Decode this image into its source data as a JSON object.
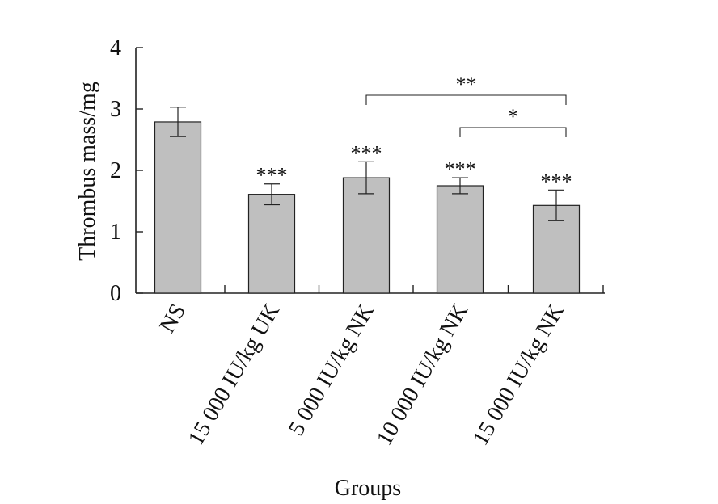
{
  "chart_data": {
    "type": "bar",
    "xlabel": "Groups",
    "ylabel": "Thrombus mass/mg",
    "ylim": [
      0,
      4
    ],
    "yticks": [
      "0",
      "1",
      "2",
      "3",
      "4"
    ],
    "categories": [
      "NS",
      "15 000 IU/kg UK",
      "5 000 IU/kg NK",
      "10 000 IU/kg NK",
      "15 000 IU/kg NK"
    ],
    "values": [
      2.79,
      1.61,
      1.88,
      1.75,
      1.43
    ],
    "errors": [
      0.24,
      0.17,
      0.26,
      0.13,
      0.25
    ],
    "significance": [
      "",
      "***",
      "***",
      "***",
      "***"
    ],
    "brackets": [
      {
        "from": "5 000 IU/kg NK",
        "to": "15 000 IU/kg NK",
        "label": "**"
      },
      {
        "from": "10 000 IU/kg NK",
        "to": "15 000 IU/kg NK",
        "label": "*"
      }
    ],
    "bar_color": "#bfbfbf",
    "grid": false
  }
}
